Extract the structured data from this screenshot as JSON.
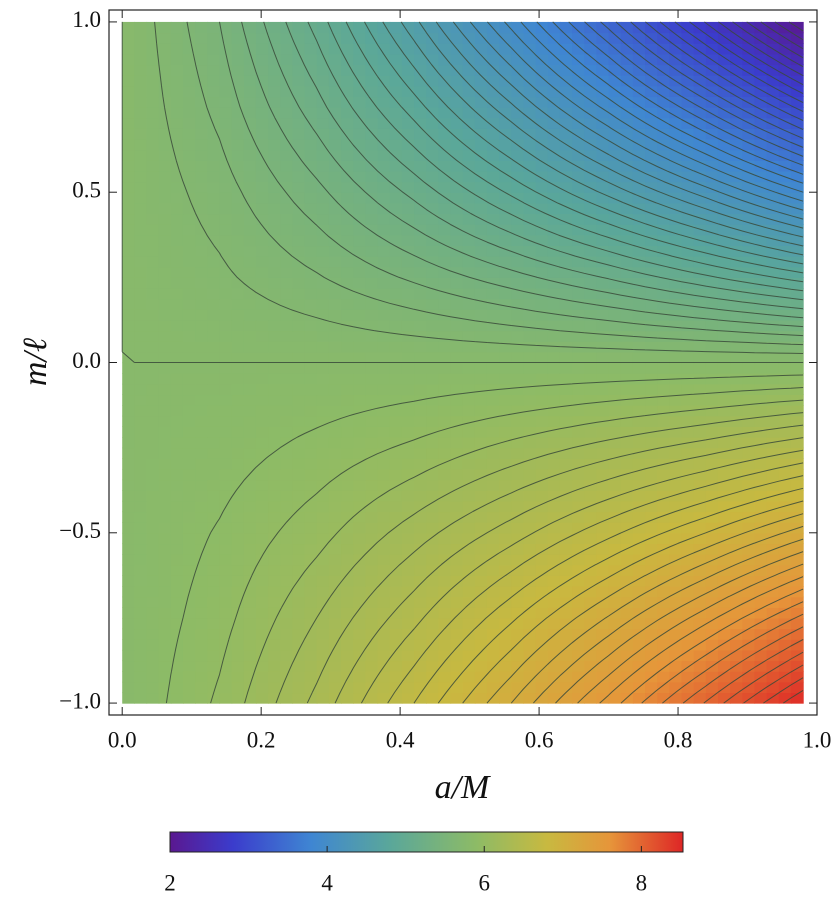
{
  "chart_data": {
    "type": "contour",
    "x_label": "a/M",
    "y_label": "m/ℓ",
    "x": [
      0,
      0.14,
      0.28,
      0.42,
      0.56,
      0.7,
      0.84,
      0.98
    ],
    "y": [
      -1,
      -0.75,
      -0.5,
      -0.25,
      0,
      0.25,
      0.5,
      0.75,
      1
    ],
    "z": [
      [
        5.8,
        6.02,
        6.33,
        6.7,
        7.1,
        7.54,
        8.01,
        8.5
      ],
      [
        5.8,
        5.96,
        6.2,
        6.47,
        6.78,
        7.11,
        7.46,
        7.83
      ],
      [
        5.8,
        5.91,
        6.06,
        6.25,
        6.45,
        6.67,
        6.9,
        7.15
      ],
      [
        5.8,
        5.85,
        5.93,
        6.02,
        6.13,
        6.24,
        6.35,
        6.48
      ],
      [
        5.8,
        5.8,
        5.8,
        5.8,
        5.8,
        5.8,
        5.8,
        5.8
      ],
      [
        5.8,
        5.72,
        5.61,
        5.48,
        5.34,
        5.19,
        5.02,
        4.85
      ],
      [
        5.8,
        5.65,
        5.43,
        5.17,
        4.88,
        4.57,
        4.25,
        3.9
      ],
      [
        5.8,
        5.57,
        5.24,
        4.85,
        4.42,
        3.96,
        3.47,
        2.95
      ],
      [
        5.8,
        5.5,
        5.06,
        4.53,
        3.96,
        3.35,
        2.69,
        2.0
      ]
    ],
    "xlim": [
      -0.019,
      1.0
    ],
    "ylim": [
      -1.035,
      1.035
    ],
    "xticks": [
      {
        "value": 0,
        "label": "0.0"
      },
      {
        "value": 0.2,
        "label": "0.2"
      },
      {
        "value": 0.4,
        "label": "0.4"
      },
      {
        "value": 0.6,
        "label": "0.6"
      },
      {
        "value": 0.8,
        "label": "0.8"
      },
      {
        "value": 1,
        "label": "1.0"
      }
    ],
    "yticks": [
      {
        "value": -1,
        "label": "−1.0"
      },
      {
        "value": -0.5,
        "label": "−0.5"
      },
      {
        "value": 0,
        "label": "0.0"
      },
      {
        "value": 0.5,
        "label": "0.5"
      },
      {
        "value": 1,
        "label": "1.0"
      }
    ],
    "zlim": [
      2,
      8.53
    ],
    "zticks": [
      2,
      4,
      6,
      8
    ],
    "contour_step": 0.1,
    "contour_color": "#3a4a3a",
    "colormap": [
      {
        "value": 2,
        "color": "#5a1890"
      },
      {
        "value": 2.8,
        "color": "#3b3ccc"
      },
      {
        "value": 3.8,
        "color": "#3f86d2"
      },
      {
        "value": 4.8,
        "color": "#5aa79a"
      },
      {
        "value": 5.9,
        "color": "#8dbb66"
      },
      {
        "value": 6.8,
        "color": "#c8b940"
      },
      {
        "value": 7.6,
        "color": "#e6953a"
      },
      {
        "value": 8.53,
        "color": "#de2626"
      }
    ]
  }
}
